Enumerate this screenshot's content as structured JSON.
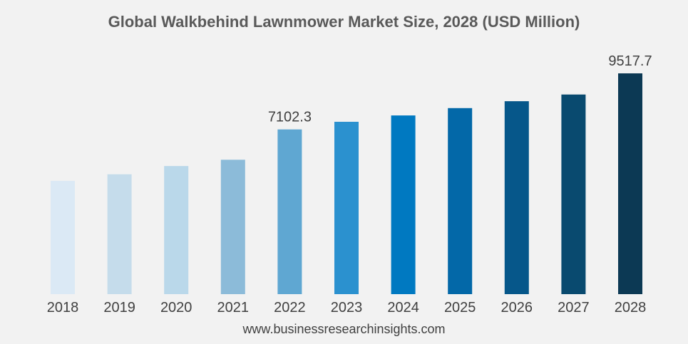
{
  "chart_data": {
    "type": "bar",
    "title": "Global Walkbehind Lawnmower Market Size, 2028 (USD Million)",
    "xlabel": "",
    "ylabel": "",
    "categories": [
      "2018",
      "2019",
      "2020",
      "2021",
      "2022",
      "2023",
      "2024",
      "2025",
      "2026",
      "2027",
      "2028"
    ],
    "values": [
      4886,
      5168,
      5523,
      5792,
      7102.3,
      7431,
      7703,
      8019,
      8317,
      8606,
      9517.7
    ],
    "ylim": [
      0,
      9517.7
    ],
    "data_labels": [
      {
        "index": 4,
        "text": "7102.3"
      },
      {
        "index": 10,
        "text": "9517.7"
      }
    ],
    "colors": [
      "#dbe9f5",
      "#c5dceb",
      "#bad8ea",
      "#8cbbd9",
      "#5fa7d2",
      "#2b91cf",
      "#0079c1",
      "#0368a8",
      "#06578a",
      "#094a6f",
      "#0c3954"
    ],
    "grid": false,
    "legend": "none"
  },
  "footer": {
    "source": "www.businessresearchinsights.com"
  }
}
